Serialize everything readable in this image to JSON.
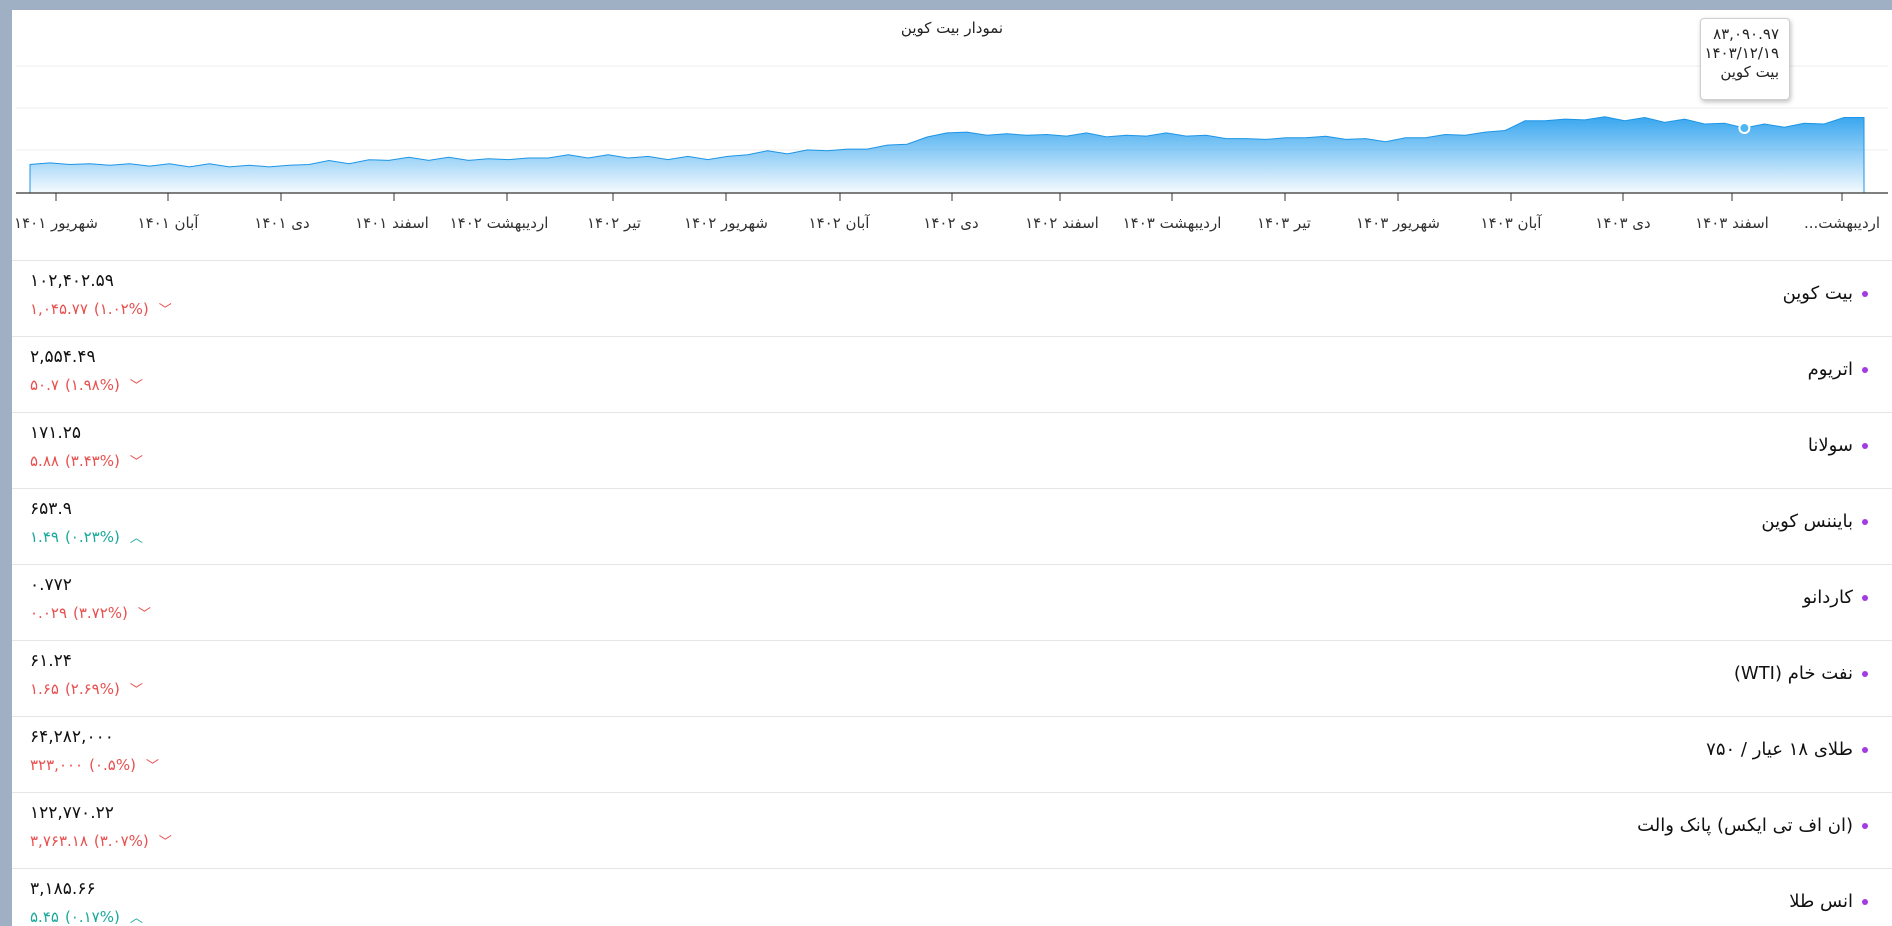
{
  "chart": {
    "title": "نمودار بیت کوین",
    "x_tick_labels": [
      "شهریور ۱۴۰۱",
      "آبان ۱۴۰۱",
      "دی ۱۴۰۱",
      "اسفند ۱۴۰۱",
      "اردیبهشت ۱۴۰۲",
      "تیر ۱۴۰۲",
      "شهریور ۱۴۰۲",
      "آبان ۱۴۰۲",
      "دی ۱۴۰۲",
      "اسفند ۱۴۰۲",
      "اردیبهشت ۱۴۰۳",
      "تیر ۱۴۰۳",
      "شهریور ۱۴۰۳",
      "آبان ۱۴۰۳",
      "دی ۱۴۰۳",
      "اسفند ۱۴۰۳",
      "اردیبهشت..."
    ],
    "tooltip": {
      "value": "۸۳,۰۹۰.۹۷",
      "date": "۱۴۰۳/۱۲/۱۹",
      "series": "بیت کوین"
    },
    "area_color": "#3aa9f0",
    "area_values": [
      0.12,
      0.11,
      0.12,
      0.1,
      0.11,
      0.1,
      0.1,
      0.1,
      0.09,
      0.1,
      0.09,
      0.08,
      0.09,
      0.08,
      0.12,
      0.14,
      0.13,
      0.15,
      0.17,
      0.18,
      0.17,
      0.18,
      0.17,
      0.16,
      0.18,
      0.17,
      0.2,
      0.21,
      0.2,
      0.21,
      0.2,
      0.19,
      0.18,
      0.19,
      0.18,
      0.19,
      0.24,
      0.26,
      0.25,
      0.27,
      0.29,
      0.28,
      0.31,
      0.33,
      0.37,
      0.43,
      0.51,
      0.49,
      0.48,
      0.47,
      0.48,
      0.46,
      0.47,
      0.48,
      0.46,
      0.45,
      0.47,
      0.48,
      0.47,
      0.45,
      0.44,
      0.41,
      0.43,
      0.42,
      0.45,
      0.44,
      0.43,
      0.41,
      0.4,
      0.42,
      0.45,
      0.46,
      0.48,
      0.49,
      0.54,
      0.63,
      0.66,
      0.65,
      0.67,
      0.68,
      0.66,
      0.67,
      0.64,
      0.65,
      0.62,
      0.6,
      0.57,
      0.59,
      0.58,
      0.6,
      0.62,
      0.67,
      0.7
    ],
    "marker_index": 86
  },
  "assets": [
    {
      "name": "بیت کوین",
      "price": "۱۰۲,۴۰۲.۵۹",
      "change": "۱,۰۴۵.۷۷",
      "percent": "(۱.۰۲%)",
      "dir": "down"
    },
    {
      "name": "اتریوم",
      "price": "۲,۵۵۴.۴۹",
      "change": "۵۰.۷",
      "percent": "(۱.۹۸%)",
      "dir": "down"
    },
    {
      "name": "سولانا",
      "price": "۱۷۱.۲۵",
      "change": "۵.۸۸",
      "percent": "(۳.۴۳%)",
      "dir": "down"
    },
    {
      "name": "بایننس کوین",
      "price": "۶۵۳.۹",
      "change": "۱.۴۹",
      "percent": "(۰.۲۳%)",
      "dir": "up"
    },
    {
      "name": "کاردانو",
      "price": "۰.۷۷۲",
      "change": "۰.۰۲۹",
      "percent": "(۳.۷۲%)",
      "dir": "down"
    },
    {
      "name": "نفت خام (WTI)",
      "price": "۶۱.۲۴",
      "change": "۱.۶۵",
      "percent": "(۲.۶۹%)",
      "dir": "down"
    },
    {
      "name": "طلای ۱۸ عیار / ۷۵۰",
      "price": "۶۴,۲۸۲,۰۰۰",
      "change": "۳۲۳,۰۰۰",
      "percent": "(۰.۵%)",
      "dir": "down"
    },
    {
      "name": "(ان اف تی ایکس) پانک والت",
      "price": "۱۲۲,۷۷۰.۲۲",
      "change": "۳,۷۶۳.۱۸",
      "percent": "(۳.۰۷%)",
      "dir": "down"
    },
    {
      "name": "انس طلا",
      "price": "۳,۱۸۵.۶۶",
      "change": "۵.۴۵",
      "percent": "(۰.۱۷%)",
      "dir": "up"
    }
  ],
  "icons": {
    "down": "chevron-down-icon",
    "up": "chevron-up-icon"
  }
}
